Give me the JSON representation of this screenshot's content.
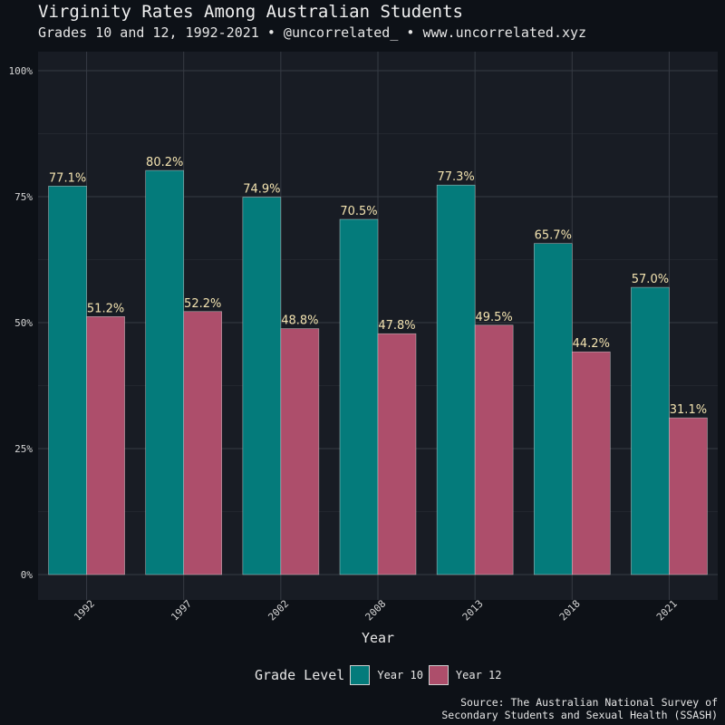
{
  "title": "Virginity Rates Among Australian Students",
  "subtitle": "Grades 10 and 12, 1992-2021 • @uncorrelated_ • www.uncorrelated.xyz",
  "legend": {
    "title": "Grade Level",
    "items": [
      {
        "label": "Year 10",
        "color": "#047b7b"
      },
      {
        "label": "Year 12",
        "color": "#ad4e6b"
      }
    ]
  },
  "source": {
    "line1": "Source: The Australian National Survey of",
    "line2": "Secondary Students and Sexual Health (SSASH)"
  },
  "chart_data": {
    "type": "bar",
    "title": "Virginity Rates Among Australian Students",
    "xlabel": "Year",
    "ylabel": "",
    "categories": [
      "1992",
      "1997",
      "2002",
      "2008",
      "2013",
      "2018",
      "2021"
    ],
    "series": [
      {
        "name": "Year 10",
        "color": "#047b7b",
        "values": [
          77.1,
          80.2,
          74.9,
          70.5,
          77.3,
          65.7,
          57.0
        ]
      },
      {
        "name": "Year 12",
        "color": "#ad4e6b",
        "values": [
          51.2,
          52.2,
          48.8,
          47.8,
          49.5,
          44.2,
          31.1
        ]
      }
    ],
    "data_labels": [
      [
        "77.1%",
        "80.2%",
        "74.9%",
        "70.5%",
        "77.3%",
        "65.7%",
        "57.0%"
      ],
      [
        "51.2%",
        "52.2%",
        "48.8%",
        "47.8%",
        "49.5%",
        "44.2%",
        "31.1%"
      ]
    ],
    "yticks": [
      0,
      25,
      50,
      75,
      100
    ],
    "ytick_labels": [
      "0%",
      "25%",
      "50%",
      "75%",
      "100%"
    ],
    "ylim": [
      0,
      100
    ],
    "grid": true,
    "legend_position": "bottom"
  }
}
